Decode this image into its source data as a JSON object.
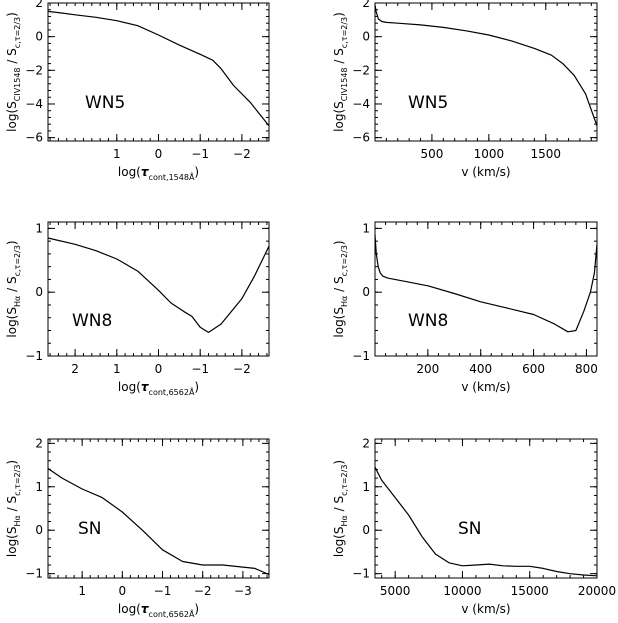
{
  "chart_data": [
    {
      "id": "p1",
      "type": "line",
      "label": "WN5",
      "xlim": [
        2.65,
        -2.65
      ],
      "ylim": [
        -6.2,
        2.0
      ],
      "xticks": [
        {
          "v": 1,
          "t": "1"
        },
        {
          "v": 0,
          "t": "0"
        },
        {
          "v": -1,
          "t": "−1"
        },
        {
          "v": -2,
          "t": "−2"
        }
      ],
      "yticks": [
        {
          "v": 2,
          "t": "2"
        },
        {
          "v": 0,
          "t": "0"
        },
        {
          "v": -2,
          "t": "−2"
        },
        {
          "v": -4,
          "t": "−4"
        },
        {
          "v": -6,
          "t": "−6"
        }
      ],
      "xlabel": {
        "pre": "log(",
        "main": "τ",
        "sub": "cont,1548Å",
        "post": ")"
      },
      "ylabel": {
        "pre": "log(S",
        "sub1": "CIV1548",
        "mid": " / S",
        "sub2": "c,τ=2/3",
        "post": ")"
      },
      "x": [
        2.65,
        2.3,
        2.0,
        1.5,
        1.0,
        0.5,
        0.0,
        -0.5,
        -1.0,
        -1.3,
        -1.5,
        -1.8,
        -2.2,
        -2.65
      ],
      "y": [
        1.5,
        1.4,
        1.3,
        1.15,
        0.95,
        0.65,
        0.1,
        -0.5,
        -1.05,
        -1.4,
        -1.9,
        -2.9,
        -3.9,
        -5.3
      ]
    },
    {
      "id": "p2",
      "type": "line",
      "label": "WN5",
      "xlim": [
        0,
        1950
      ],
      "ylim": [
        -6.2,
        2.0
      ],
      "xticks": [
        {
          "v": 500,
          "t": "500"
        },
        {
          "v": 1000,
          "t": "1000"
        },
        {
          "v": 1500,
          "t": "1500"
        }
      ],
      "yticks": [
        {
          "v": 2,
          "t": "2"
        },
        {
          "v": 0,
          "t": "0"
        },
        {
          "v": -2,
          "t": "−2"
        },
        {
          "v": -4,
          "t": "−4"
        },
        {
          "v": -6,
          "t": "−6"
        }
      ],
      "xlabel": {
        "pre": "v (km/s)"
      },
      "ylabel": {
        "pre": "log(S",
        "sub1": "CIV1548",
        "mid": " / S",
        "sub2": "c,τ=2/3",
        "post": ")"
      },
      "x": [
        0,
        10,
        30,
        60,
        100,
        200,
        400,
        600,
        800,
        1000,
        1200,
        1400,
        1550,
        1650,
        1750,
        1850,
        1950
      ],
      "y": [
        1.9,
        1.5,
        1.05,
        0.9,
        0.85,
        0.8,
        0.7,
        0.55,
        0.35,
        0.1,
        -0.25,
        -0.7,
        -1.1,
        -1.6,
        -2.3,
        -3.4,
        -5.3
      ]
    },
    {
      "id": "p3",
      "type": "line",
      "label": "WN8",
      "xlim": [
        2.65,
        -2.65
      ],
      "ylim": [
        -1.0,
        1.1
      ],
      "xticks": [
        {
          "v": 2,
          "t": "2"
        },
        {
          "v": 1,
          "t": "1"
        },
        {
          "v": 0,
          "t": "0"
        },
        {
          "v": -1,
          "t": "−1"
        },
        {
          "v": -2,
          "t": "−2"
        }
      ],
      "yticks": [
        {
          "v": 1,
          "t": "1"
        },
        {
          "v": 0,
          "t": "0"
        },
        {
          "v": -1,
          "t": "−1"
        }
      ],
      "xlabel": {
        "pre": "log(",
        "main": "τ",
        "sub": "cont,6562Å",
        "post": ")"
      },
      "ylabel": {
        "pre": "log(S",
        "sub1": "Hα",
        "mid": " / S",
        "sub2": "c,τ=2/3",
        "post": ")"
      },
      "x": [
        2.65,
        2.0,
        1.5,
        1.0,
        0.5,
        0.0,
        -0.3,
        -0.6,
        -0.8,
        -1.0,
        -1.2,
        -1.5,
        -2.0,
        -2.3,
        -2.65
      ],
      "y": [
        0.85,
        0.75,
        0.65,
        0.52,
        0.33,
        0.03,
        -0.17,
        -0.3,
        -0.38,
        -0.55,
        -0.63,
        -0.5,
        -0.1,
        0.25,
        0.72
      ]
    },
    {
      "id": "p4",
      "type": "line",
      "label": "WN8",
      "xlim": [
        0,
        840
      ],
      "ylim": [
        -1.0,
        1.1
      ],
      "xticks": [
        {
          "v": 200,
          "t": "200"
        },
        {
          "v": 400,
          "t": "400"
        },
        {
          "v": 600,
          "t": "600"
        },
        {
          "v": 800,
          "t": "800"
        }
      ],
      "yticks": [
        {
          "v": 1,
          "t": "1"
        },
        {
          "v": 0,
          "t": "0"
        },
        {
          "v": -1,
          "t": "−1"
        }
      ],
      "xlabel": {
        "pre": "v (km/s)"
      },
      "ylabel": {
        "pre": "log(S",
        "sub1": "Hα",
        "mid": " / S",
        "sub2": "c,τ=2/3",
        "post": ")"
      },
      "x": [
        0,
        5,
        12,
        20,
        30,
        50,
        100,
        200,
        300,
        400,
        500,
        600,
        680,
        730,
        760,
        790,
        815,
        830,
        840
      ],
      "y": [
        0.9,
        0.6,
        0.4,
        0.3,
        0.25,
        0.22,
        0.18,
        0.1,
        -0.02,
        -0.15,
        -0.25,
        -0.35,
        -0.5,
        -0.62,
        -0.6,
        -0.3,
        0.0,
        0.3,
        0.75
      ]
    },
    {
      "id": "p5",
      "type": "line",
      "label": "SN",
      "xlim": [
        1.85,
        -3.65
      ],
      "ylim": [
        -1.1,
        2.1
      ],
      "xticks": [
        {
          "v": 1,
          "t": "1"
        },
        {
          "v": 0,
          "t": "0"
        },
        {
          "v": -1,
          "t": "−1"
        },
        {
          "v": -2,
          "t": "−2"
        },
        {
          "v": -3,
          "t": "−3"
        }
      ],
      "yticks": [
        {
          "v": 2,
          "t": "2"
        },
        {
          "v": 1,
          "t": "1"
        },
        {
          "v": 0,
          "t": "0"
        },
        {
          "v": -1,
          "t": "−1"
        }
      ],
      "xlabel": {
        "pre": "log(",
        "main": "τ",
        "sub": "cont,6562Å",
        "post": ")"
      },
      "ylabel": {
        "pre": "log(S",
        "sub1": "Hα",
        "mid": " / S",
        "sub2": "c,τ=2/3",
        "post": ")"
      },
      "x": [
        1.85,
        1.5,
        1.0,
        0.5,
        0.0,
        -0.5,
        -1.0,
        -1.5,
        -2.0,
        -2.5,
        -3.0,
        -3.3,
        -3.65
      ],
      "y": [
        1.42,
        1.2,
        0.95,
        0.75,
        0.42,
        0.0,
        -0.45,
        -0.72,
        -0.8,
        -0.8,
        -0.85,
        -0.88,
        -1.02
      ]
    },
    {
      "id": "p6",
      "type": "line",
      "label": "SN",
      "xlim": [
        3500,
        20000
      ],
      "ylim": [
        -1.1,
        2.1
      ],
      "xticks": [
        {
          "v": 5000,
          "t": "5000"
        },
        {
          "v": 10000,
          "t": "10000"
        },
        {
          "v": 15000,
          "t": "15000"
        },
        {
          "v": 20000,
          "t": "20000"
        }
      ],
      "yticks": [
        {
          "v": 2,
          "t": "2"
        },
        {
          "v": 1,
          "t": "1"
        },
        {
          "v": 0,
          "t": "0"
        },
        {
          "v": -1,
          "t": "−1"
        }
      ],
      "xlabel": {
        "pre": "v (km/s)"
      },
      "ylabel": {
        "pre": "log(S",
        "sub1": "Hα",
        "mid": " / S",
        "sub2": "c,τ=2/3",
        "post": ")"
      },
      "x": [
        3500,
        4000,
        5000,
        6000,
        7000,
        8000,
        9000,
        10000,
        11000,
        12000,
        13000,
        14000,
        15000,
        16000,
        17000,
        18000,
        19000,
        20000
      ],
      "y": [
        1.45,
        1.15,
        0.75,
        0.35,
        -0.15,
        -0.55,
        -0.75,
        -0.82,
        -0.8,
        -0.78,
        -0.82,
        -0.83,
        -0.83,
        -0.88,
        -0.95,
        -1.0,
        -1.03,
        -1.05
      ]
    }
  ]
}
